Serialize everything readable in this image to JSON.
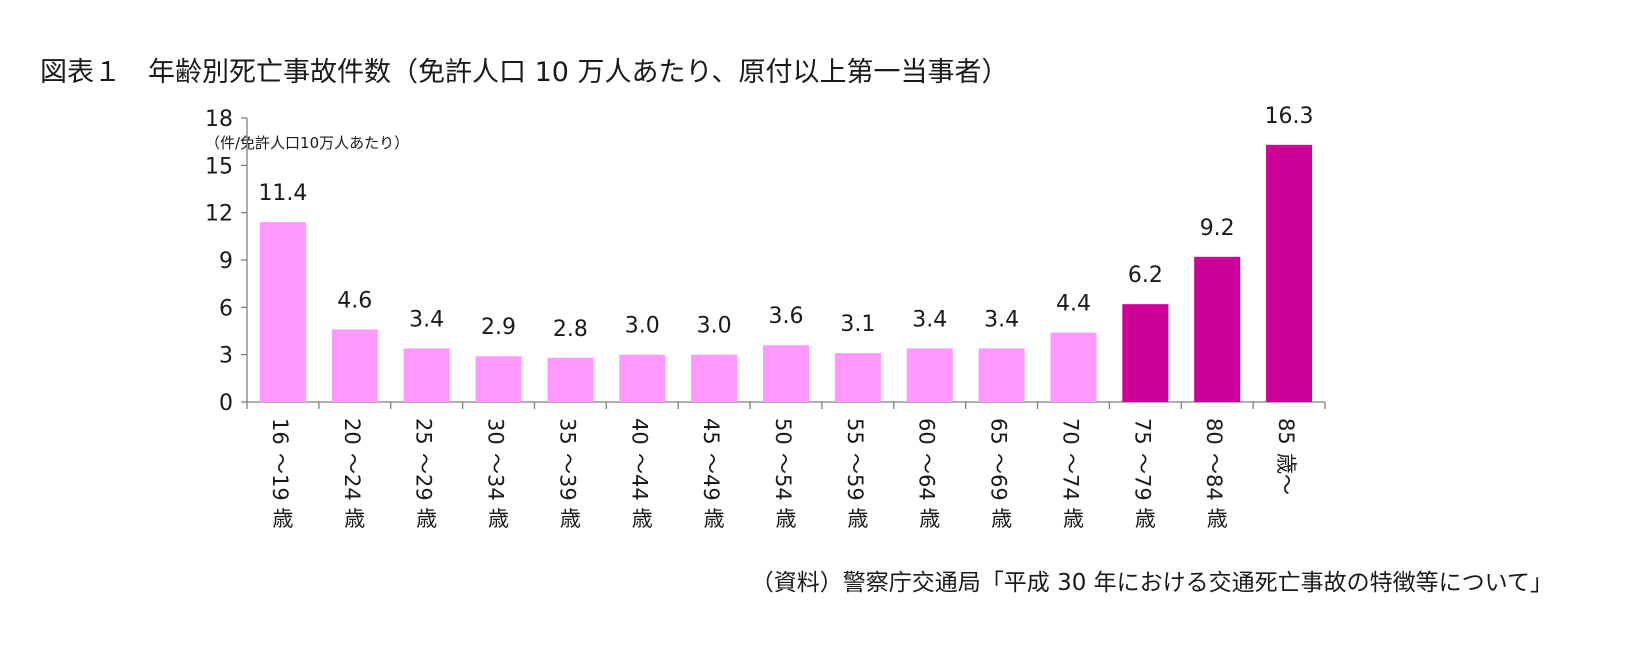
{
  "title": "図表１　年齢別死亡事故件数（免許人口 10 万人あたり、原付以上第一当事者）",
  "source": "（資料）警察庁交通局「平成 30 年における交通死亡事故の特徴等について」",
  "chart_data": {
    "type": "bar",
    "ylabel": "（件/免許人口10万人あたり）",
    "ylim": [
      0,
      18
    ],
    "yticks": [
      "0",
      "3",
      "6",
      "9",
      "12",
      "15",
      "18"
    ],
    "grid": false,
    "categories": [
      {
        "num": "16",
        "mid": "～19",
        "unit": "歳"
      },
      {
        "num": "20",
        "mid": "～24",
        "unit": "歳"
      },
      {
        "num": "25",
        "mid": "～29",
        "unit": "歳"
      },
      {
        "num": "30",
        "mid": "～34",
        "unit": "歳"
      },
      {
        "num": "35",
        "mid": "～39",
        "unit": "歳"
      },
      {
        "num": "40",
        "mid": "～44",
        "unit": "歳"
      },
      {
        "num": "45",
        "mid": "～49",
        "unit": "歳"
      },
      {
        "num": "50",
        "mid": "～54",
        "unit": "歳"
      },
      {
        "num": "55",
        "mid": "～59",
        "unit": "歳"
      },
      {
        "num": "60",
        "mid": "～64",
        "unit": "歳"
      },
      {
        "num": "65",
        "mid": "～69",
        "unit": "歳"
      },
      {
        "num": "70",
        "mid": "～74",
        "unit": "歳"
      },
      {
        "num": "75",
        "mid": "～79",
        "unit": "歳"
      },
      {
        "num": "80",
        "mid": "～84",
        "unit": "歳"
      },
      {
        "num": "85",
        "mid": "歳～",
        "unit": ""
      }
    ],
    "values": [
      11.4,
      4.6,
      3.4,
      2.9,
      2.8,
      3.0,
      3.0,
      3.6,
      3.1,
      3.4,
      3.4,
      4.4,
      6.2,
      9.2,
      16.3
    ],
    "data_labels": [
      "11.4",
      "4.6",
      "3.4",
      "2.9",
      "2.8",
      "3.0",
      "3.0",
      "3.6",
      "3.1",
      "3.4",
      "3.4",
      "4.4",
      "6.2",
      "9.2",
      "16.3"
    ],
    "colors": {
      "light": "#FF99FF",
      "dark": "#CC0099",
      "axis": "#808080"
    },
    "highlight_from_index": 12
  }
}
